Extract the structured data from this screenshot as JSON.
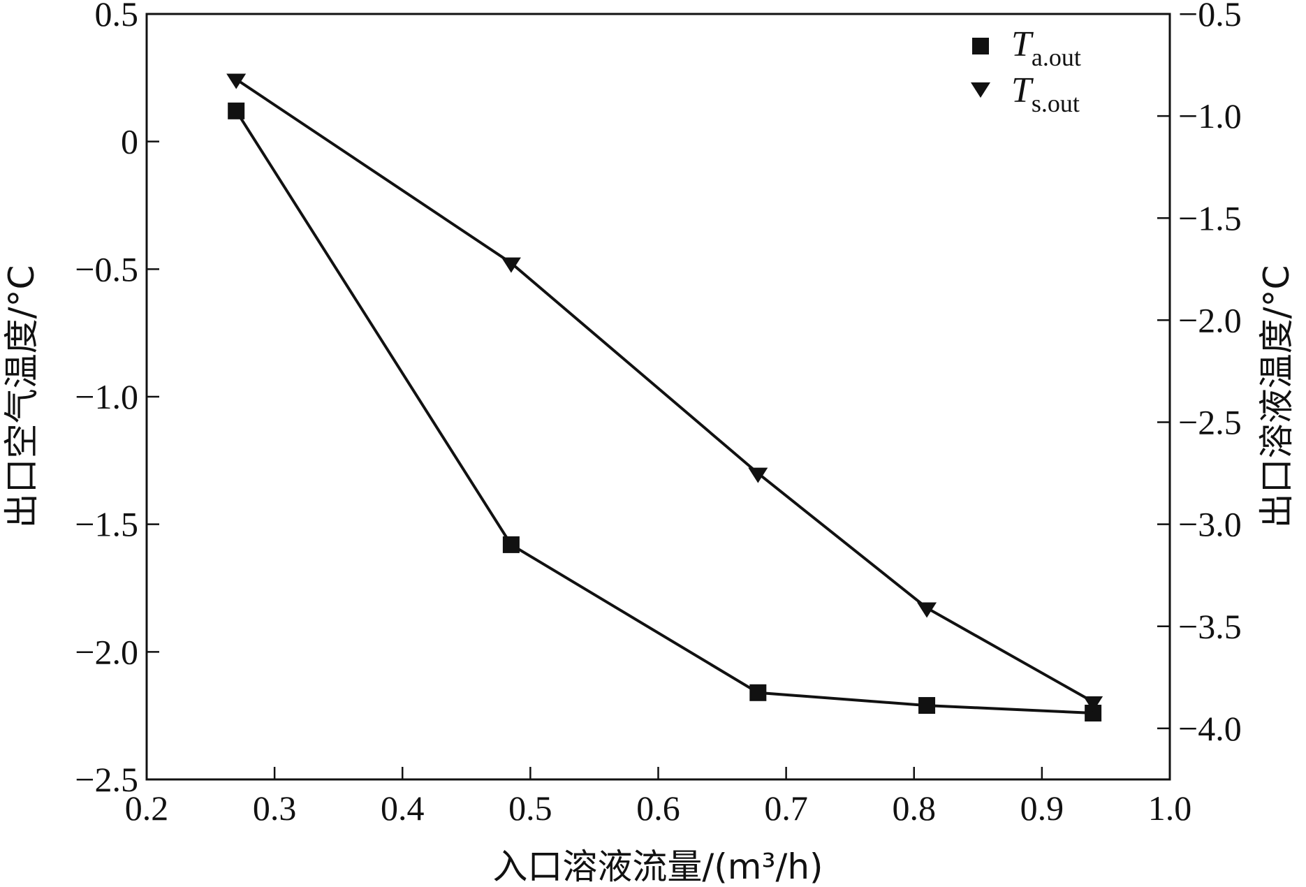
{
  "chart_data": {
    "type": "line",
    "x": [
      0.27,
      0.485,
      0.678,
      0.81,
      0.94
    ],
    "series": [
      {
        "name": "T a.out",
        "symbol": "T",
        "subscript": "a.out",
        "axis": "left",
        "marker": "square",
        "values": [
          0.12,
          -1.58,
          -2.16,
          -2.21,
          -2.24
        ]
      },
      {
        "name": "T s.out",
        "symbol": "T",
        "subscript": "s.out",
        "axis": "right",
        "marker": "triangle-down",
        "values": [
          -0.82,
          -1.72,
          -2.75,
          -3.41,
          -3.87
        ]
      }
    ],
    "xlabel": "入口溶液流量/(m³/h)",
    "ylabel_left": "出口空气温度/°C",
    "ylabel_right": "出口溶液温度/°C",
    "xlim": [
      0.2,
      1.0
    ],
    "ylim_left": [
      -2.5,
      0.5
    ],
    "ylim_right": [
      -4.25,
      -0.5
    ],
    "xticks": [
      "0.2",
      "0.3",
      "0.4",
      "0.5",
      "0.6",
      "0.7",
      "0.8",
      "0.9",
      "1.0"
    ],
    "yticks_left": [
      "0.5",
      "0",
      "−0.5",
      "−1.0",
      "−1.5",
      "−2.0",
      "−2.5"
    ],
    "yticks_right": [
      "−0.5",
      "−1.0",
      "−1.5",
      "−2.0",
      "−2.5",
      "−3.0",
      "−3.5",
      "−4.0"
    ],
    "grid": false,
    "legend_position": "top-right",
    "line_color": "#111111"
  }
}
